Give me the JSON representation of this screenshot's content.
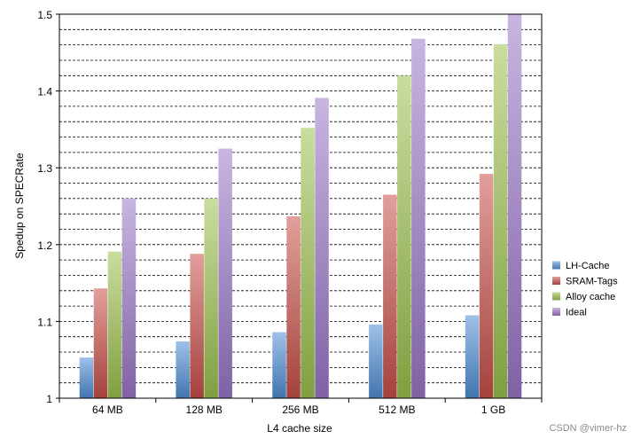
{
  "chart_data": {
    "type": "bar",
    "xlabel": "L4 cache size",
    "ylabel": "Spedup on SPECRate",
    "categories": [
      "64 MB",
      "128 MB",
      "256 MB",
      "512 MB",
      "1 GB"
    ],
    "ylim": [
      1,
      1.5
    ],
    "yticks": [
      "1",
      "1.1",
      "1.2",
      "1.3",
      "1.4",
      "1.5"
    ],
    "grid": "horizontal dashed, every 0.02",
    "legend_position": "right",
    "series": [
      {
        "name": "LH-Cache",
        "color": "#4f8fd6",
        "values": [
          1.053,
          1.074,
          1.086,
          1.096,
          1.108
        ]
      },
      {
        "name": "SRAM-Tags",
        "color": "#c8504a",
        "values": [
          1.143,
          1.188,
          1.237,
          1.265,
          1.292
        ]
      },
      {
        "name": "Alloy cache",
        "color": "#9cc24e",
        "values": [
          1.191,
          1.26,
          1.352,
          1.42,
          1.461
        ]
      },
      {
        "name": "Ideal",
        "color": "#9b78c8",
        "values": [
          1.26,
          1.325,
          1.391,
          1.468,
          1.5
        ]
      }
    ]
  },
  "watermark": "CSDN @vimer-hz"
}
